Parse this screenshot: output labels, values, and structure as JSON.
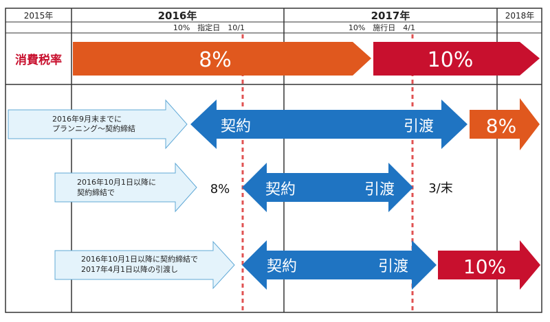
{
  "header": {
    "years": [
      "2015年",
      "2016年",
      "2017年",
      "2018年"
    ],
    "note_2016": "10%　指定日　10/1",
    "note_2017": "10%　施行日　4/1"
  },
  "tax_row": {
    "label": "消費税率",
    "current_rate": "8%",
    "new_rate": "10%"
  },
  "cases": [
    {
      "note": [
        "2016年9月末までに",
        "プランニング～契約締結"
      ],
      "contract": "契約",
      "delivery": "引渡",
      "result": "8%"
    },
    {
      "note": [
        "2016年10月1日以降に",
        "契約締結で"
      ],
      "before": "8%",
      "contract": "契約",
      "delivery": "引渡",
      "after": "3/末"
    },
    {
      "note": [
        "2016年10月1日以降に契約締結で",
        "2017年4月1日以降の引渡し"
      ],
      "contract": "契約",
      "delivery": "引渡",
      "result": "10%"
    }
  ],
  "colors": {
    "orange": "#e0581e",
    "red": "#c8102e",
    "blue": "#1f74c2",
    "pale_blue": "#e4f3fb",
    "outline_blue": "#5fa8d6",
    "dotted_red": "#e05252",
    "grid": "#333333"
  }
}
